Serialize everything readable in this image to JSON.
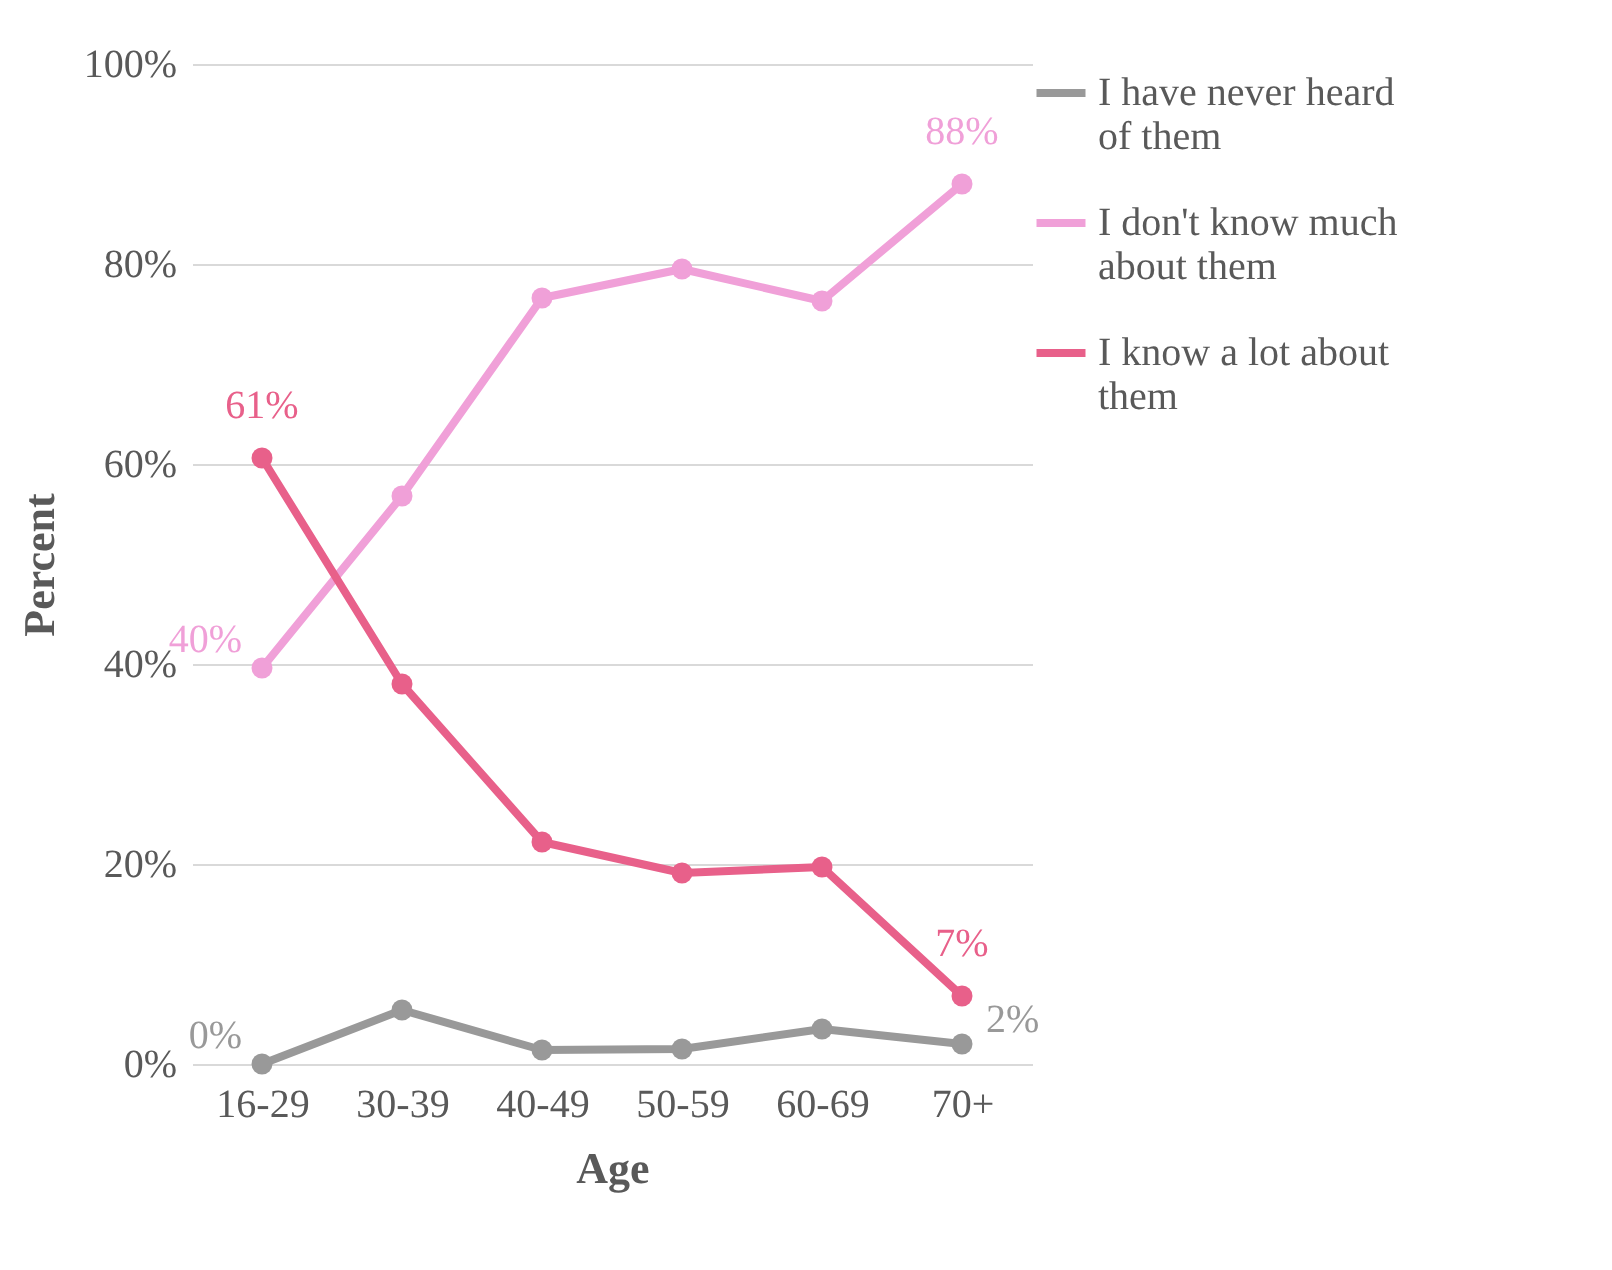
{
  "chart_data": {
    "type": "line",
    "xlabel": "Age",
    "ylabel": "Percent",
    "categories": [
      "16-29",
      "30-39",
      "40-49",
      "50-59",
      "60-69",
      "70+"
    ],
    "series": [
      {
        "name": "I have never heard of them",
        "color": "#999999",
        "values": [
          0,
          5.4,
          1.4,
          1.5,
          3.5,
          2
        ],
        "value_labels": [
          "0%",
          null,
          null,
          null,
          null,
          "2%"
        ]
      },
      {
        "name": "I don't know much about them",
        "color": "#f0a0d8",
        "values": [
          39.6,
          56.8,
          76.6,
          79.5,
          76.3,
          88
        ],
        "value_labels": [
          "40%",
          null,
          null,
          null,
          null,
          "88%"
        ]
      },
      {
        "name": "I know a lot about them",
        "color": "#e8608a",
        "values": [
          60.6,
          38,
          22.2,
          19.1,
          19.7,
          6.8
        ],
        "value_labels": [
          "61%",
          null,
          null,
          null,
          null,
          "7%"
        ]
      }
    ],
    "ylim": [
      0,
      100
    ],
    "yticks": [
      {
        "value": 0,
        "label": "0%"
      },
      {
        "value": 20,
        "label": "20%"
      },
      {
        "value": 40,
        "label": "40%"
      },
      {
        "value": 60,
        "label": "60%"
      },
      {
        "value": 80,
        "label": "80%"
      },
      {
        "value": 100,
        "label": "100%"
      }
    ],
    "grid": "y",
    "legend": "right",
    "marker": "circle",
    "line_style": "solid"
  }
}
